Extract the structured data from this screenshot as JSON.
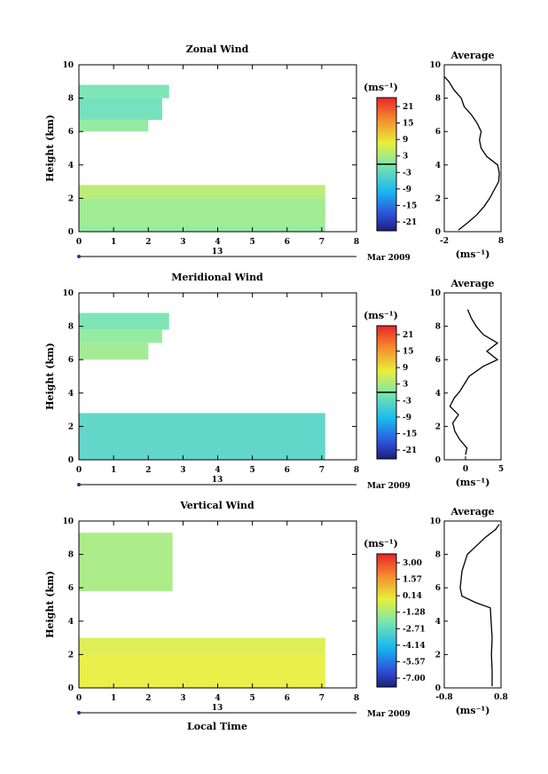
{
  "shared": {
    "xlabel": "Local Time",
    "ylabel": "Height (km)",
    "date_label": "Mar 2009",
    "day_label": "13",
    "avg_title": "Average",
    "unit": "(ms⁻¹)",
    "x_ticks": [
      "0",
      "1",
      "2",
      "3",
      "4",
      "5",
      "6",
      "7",
      "8"
    ],
    "y_ticks": [
      "0",
      "2",
      "4",
      "6",
      "8",
      "10"
    ]
  },
  "chart_data": [
    {
      "type": "heatmap",
      "title": "Zonal Wind",
      "xlabel": "",
      "ylabel": "Height (km)",
      "xlim": [
        0,
        8
      ],
      "ylim": [
        0,
        10
      ],
      "colorbar_unit": "(ms⁻¹)",
      "colorbar_ticks": [
        "21",
        "15",
        "9",
        "3",
        "-3",
        "-9",
        "-15",
        "-21"
      ],
      "colorbar_range": [
        -24,
        24
      ],
      "regions": [
        {
          "x0": 0,
          "x1": 2.6,
          "y0": 8.0,
          "y1": 8.8,
          "value": -1
        },
        {
          "x0": 0,
          "x1": 2.4,
          "y0": 6.7,
          "y1": 8.0,
          "value": -2
        },
        {
          "x0": 0,
          "x1": 2.0,
          "y0": 6.0,
          "y1": 6.7,
          "value": 1
        },
        {
          "x0": 0,
          "x1": 7.1,
          "y0": 2.0,
          "y1": 2.8,
          "value": 4
        },
        {
          "x0": 0,
          "x1": 7.1,
          "y0": 0.4,
          "y1": 2.0,
          "value": 2
        },
        {
          "x0": 0,
          "x1": 7.1,
          "y0": 0.0,
          "y1": 0.4,
          "value": 1
        }
      ],
      "average": {
        "title": "Average",
        "xlim": [
          -2,
          8
        ],
        "xticks": [
          "-2",
          "8"
        ],
        "xlabel": "(ms⁻¹)",
        "height": [
          0.1,
          0.5,
          1.0,
          1.5,
          2.0,
          2.5,
          3.0,
          3.5,
          4.0,
          4.5,
          5.0,
          5.5,
          6.0,
          6.5,
          7.0,
          7.5,
          8.0,
          8.5,
          9.0,
          9.3
        ],
        "value": [
          0.5,
          2.0,
          3.7,
          5.0,
          6.0,
          6.8,
          7.6,
          7.7,
          7.4,
          5.5,
          4.5,
          4.2,
          4.5,
          3.8,
          2.8,
          1.5,
          1.0,
          -0.3,
          -1.2,
          -2.0
        ]
      }
    },
    {
      "type": "heatmap",
      "title": "Meridional Wind",
      "xlabel": "",
      "ylabel": "Height (km)",
      "xlim": [
        0,
        8
      ],
      "ylim": [
        0,
        10
      ],
      "colorbar_unit": "(ms⁻¹)",
      "colorbar_ticks": [
        "21",
        "15",
        "9",
        "3",
        "-3",
        "-9",
        "-15",
        "-21"
      ],
      "colorbar_range": [
        -24,
        24
      ],
      "regions": [
        {
          "x0": 0,
          "x1": 2.6,
          "y0": 7.8,
          "y1": 8.8,
          "value": -1
        },
        {
          "x0": 0,
          "x1": 2.4,
          "y0": 7.0,
          "y1": 7.8,
          "value": 1
        },
        {
          "x0": 0,
          "x1": 2.0,
          "y0": 6.0,
          "y1": 7.0,
          "value": 2
        },
        {
          "x0": 0,
          "x1": 7.1,
          "y0": 0.0,
          "y1": 2.8,
          "value": -4
        }
      ],
      "average": {
        "title": "Average",
        "xlim": [
          -3,
          5
        ],
        "xticks": [
          "0",
          "5"
        ],
        "xlabel": "(ms⁻¹)",
        "height": [
          0.3,
          0.7,
          1.2,
          1.7,
          2.2,
          2.7,
          3.2,
          3.7,
          4.1,
          5.0,
          5.6,
          6.0,
          6.5,
          7.0,
          7.5,
          8.0,
          8.5,
          9.0
        ],
        "value": [
          0.0,
          0.2,
          -0.8,
          -1.5,
          -1.8,
          -1.0,
          -2.2,
          -1.6,
          -0.8,
          0.5,
          2.5,
          4.5,
          3.0,
          4.5,
          2.5,
          1.5,
          0.8,
          0.3
        ]
      }
    },
    {
      "type": "heatmap",
      "title": "Vertical Wind",
      "xlabel": "Local Time",
      "ylabel": "Height (km)",
      "xlim": [
        0,
        8
      ],
      "ylim": [
        0,
        10
      ],
      "colorbar_unit": "(ms⁻¹)",
      "colorbar_ticks": [
        "3.00",
        "1.57",
        "0.14",
        "-1.28",
        "-2.71",
        "-4.14",
        "-5.57",
        "-7.00"
      ],
      "colorbar_range": [
        -7.0,
        3.0
      ],
      "regions": [
        {
          "x0": 0,
          "x1": 2.7,
          "y0": 5.8,
          "y1": 9.3,
          "value": -1.4
        },
        {
          "x0": 0,
          "x1": 7.1,
          "y0": 2.0,
          "y1": 3.0,
          "value": -0.6
        },
        {
          "x0": 0,
          "x1": 7.1,
          "y0": 0.0,
          "y1": 2.0,
          "value": -0.4
        }
      ],
      "average": {
        "title": "Average",
        "xlim": [
          -0.8,
          0.8
        ],
        "xticks": [
          "-0.8",
          "0.8"
        ],
        "xlabel": "(ms⁻¹)",
        "height": [
          0.1,
          1.0,
          2.0,
          3.0,
          4.0,
          4.8,
          5.1,
          5.5,
          6.0,
          7.0,
          8.0,
          8.5,
          9.0,
          9.5,
          9.8
        ],
        "value": [
          0.55,
          0.55,
          0.53,
          0.55,
          0.52,
          0.5,
          0.1,
          -0.3,
          -0.35,
          -0.3,
          -0.15,
          0.1,
          0.35,
          0.65,
          0.75
        ]
      }
    }
  ]
}
